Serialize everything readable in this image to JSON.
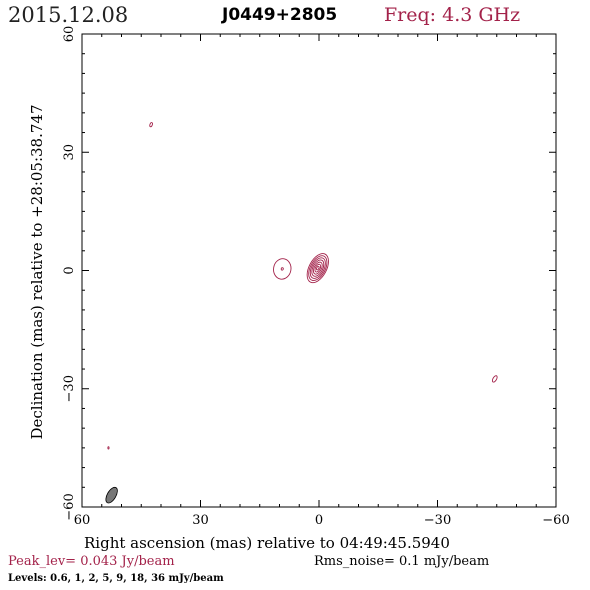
{
  "header": {
    "date": "2015.12.08",
    "source": "J0449+2805",
    "freq": "Freq: 4.3 GHz"
  },
  "chart_data": {
    "type": "contour",
    "xlabel": "Right ascension (mas) relative to 04:49:45.5940",
    "ylabel": "Declination (mas) relative to +28:05:38.747",
    "xlim": [
      60,
      -60
    ],
    "ylim": [
      -60,
      60
    ],
    "xticks": [
      60,
      30,
      0,
      -30,
      -60
    ],
    "yticks": [
      -60,
      -30,
      0,
      30,
      60
    ],
    "xtick_labels": [
      "60",
      "30",
      "0",
      "−30",
      "−60"
    ],
    "ytick_labels": [
      "−60",
      "−30",
      "0",
      "30",
      "60"
    ],
    "contour_color": "#a3224a",
    "components": [
      {
        "name": "core",
        "x": 0.3,
        "y": 0.6,
        "a": 4.0,
        "b": 2.2,
        "pa": 28,
        "nlevels": 7
      },
      {
        "name": "east-component",
        "x": 9.3,
        "y": 0.4,
        "a": 2.6,
        "b": 2.2,
        "pa": 10,
        "nlevels": 2
      },
      {
        "name": "spot-ne",
        "x": 42.5,
        "y": 37.0,
        "a": 0.55,
        "b": 0.3,
        "pa": 20,
        "nlevels": 1
      },
      {
        "name": "spot-sw",
        "x": -44.5,
        "y": -27.5,
        "a": 0.9,
        "b": 0.45,
        "pa": 30,
        "nlevels": 1
      },
      {
        "name": "spot-se",
        "x": 53.3,
        "y": -45.0,
        "a": 0.3,
        "b": 0.15,
        "pa": 0,
        "nlevels": 1
      }
    ],
    "beam": {
      "x": 52.5,
      "y": -57.0,
      "a": 2.2,
      "b": 1.1,
      "pa": 30
    }
  },
  "footer": {
    "peak": "Peak_lev=  0.043 Jy/beam",
    "rms": "Rms_noise=   0.1 mJy/beam",
    "levels": "Levels: 0.6,    1,    2,    5,    9,   18,   36 mJy/beam"
  }
}
